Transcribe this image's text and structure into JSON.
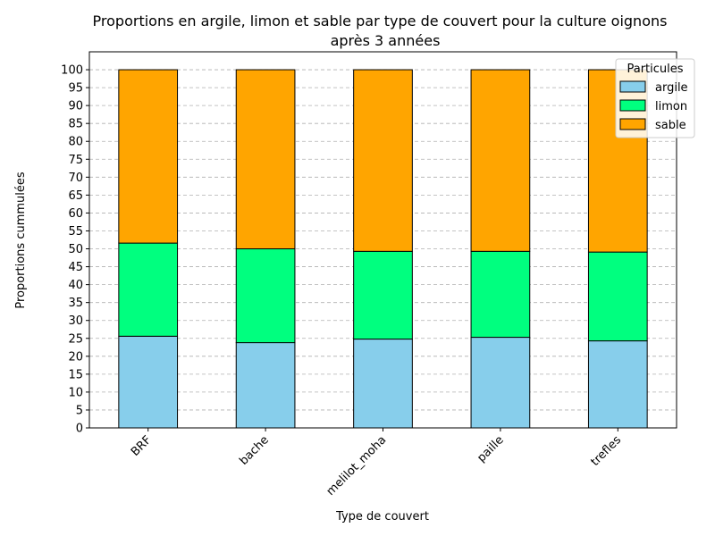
{
  "chart_data": {
    "type": "bar",
    "stacked": true,
    "title_lines": [
      "Proportions en argile, limon et sable par type de couvert pour la culture oignons",
      "après 3 années"
    ],
    "xlabel": "Type de couvert",
    "ylabel": "Proportions cummulées",
    "categories": [
      "BRF",
      "bache",
      "melilot_moha",
      "paille",
      "trefles"
    ],
    "series": [
      {
        "name": "argile",
        "color": "#87ceeb",
        "values": [
          25.6,
          23.8,
          24.8,
          25.3,
          24.3
        ]
      },
      {
        "name": "limon",
        "color": "#00ff7f",
        "values": [
          26.0,
          26.2,
          24.5,
          24.0,
          24.8
        ]
      },
      {
        "name": "sable",
        "color": "#ffa500",
        "values": [
          48.4,
          50.0,
          50.7,
          50.7,
          50.9
        ]
      }
    ],
    "ylim": [
      0,
      105
    ],
    "yticks": [
      0,
      5,
      10,
      15,
      20,
      25,
      30,
      35,
      40,
      45,
      50,
      55,
      60,
      65,
      70,
      75,
      80,
      85,
      90,
      95,
      100
    ],
    "grid": "y-dashed",
    "legend": {
      "title": "Particules",
      "placement": "top-right"
    }
  }
}
